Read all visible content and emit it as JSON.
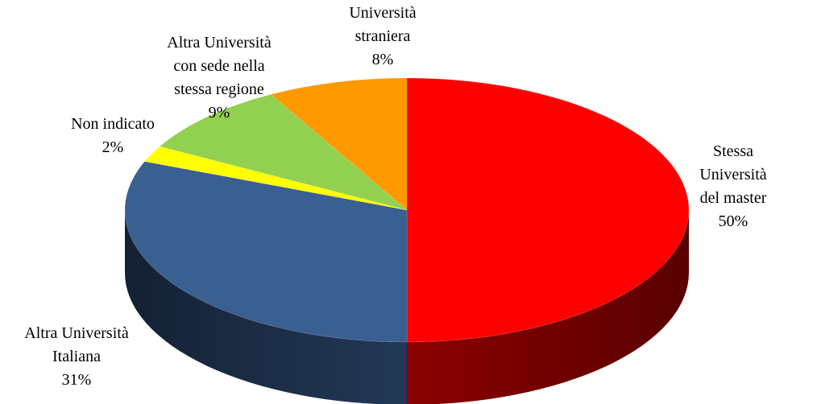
{
  "chart_data": {
    "type": "pie",
    "categories": [
      "Stessa Università\ndel master",
      "Altra Università\nItaliana",
      "Non indicato",
      "Altra Università\ncon sede nella\nstessa regione",
      "Università\nstraniera"
    ],
    "values": [
      50,
      31,
      2,
      9,
      8
    ],
    "value_labels": [
      "50%",
      "31%",
      "2%",
      "9%",
      "8%"
    ],
    "colors": [
      "#ff0000",
      "#3a5f91",
      "#ffff00",
      "#92d050",
      "#ff9900"
    ]
  }
}
